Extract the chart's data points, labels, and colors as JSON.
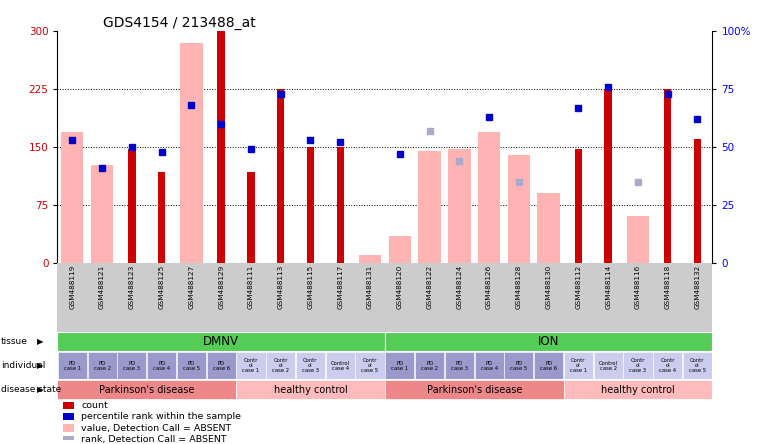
{
  "title": "GDS4154 / 213488_at",
  "samples": [
    "GSM488119",
    "GSM488121",
    "GSM488123",
    "GSM488125",
    "GSM488127",
    "GSM488129",
    "GSM488111",
    "GSM488113",
    "GSM488115",
    "GSM488117",
    "GSM488131",
    "GSM488120",
    "GSM488122",
    "GSM488124",
    "GSM488126",
    "GSM488128",
    "GSM488130",
    "GSM488112",
    "GSM488114",
    "GSM488116",
    "GSM488118",
    "GSM488132"
  ],
  "value_absent": [
    170,
    127,
    null,
    null,
    285,
    null,
    null,
    null,
    null,
    null,
    10,
    35,
    145,
    148,
    170,
    140,
    90,
    null,
    null,
    60,
    null,
    null
  ],
  "count": [
    null,
    null,
    147,
    117,
    null,
    300,
    118,
    225,
    150,
    150,
    null,
    null,
    null,
    null,
    null,
    null,
    null,
    148,
    225,
    null,
    225,
    160
  ],
  "rank_pct": [
    53,
    41,
    50,
    48,
    68,
    60,
    49,
    73,
    53,
    52,
    null,
    47,
    null,
    null,
    63,
    null,
    null,
    67,
    76,
    null,
    73,
    62
  ],
  "rank_absent": [
    null,
    null,
    null,
    null,
    null,
    null,
    null,
    null,
    null,
    null,
    null,
    null,
    57,
    44,
    null,
    35,
    null,
    null,
    null,
    35,
    null,
    null
  ],
  "ylim_left": [
    0,
    300
  ],
  "yticks_left": [
    0,
    75,
    150,
    225,
    300
  ],
  "yticks_right": [
    0,
    25,
    50,
    75,
    100
  ],
  "hlines": [
    75,
    150,
    225
  ],
  "color_value_absent": "#ffb3b3",
  "color_count": "#cc0000",
  "color_rank_pct": "#0000cc",
  "color_rank_absent": "#aaaacc",
  "color_tissue": "#55cc55",
  "color_pd": "#ee8888",
  "color_hc": "#ffbbbb",
  "color_indiv_pd": "#9999cc",
  "color_indiv_hc": "#ccccee",
  "tissue_labels": [
    "DMNV",
    "ION"
  ],
  "tissue_ranges": [
    [
      0,
      10
    ],
    [
      11,
      21
    ]
  ],
  "pd_ranges_dmnv": [
    0,
    5
  ],
  "hc_ranges_dmnv": [
    6,
    10
  ],
  "pd_ranges_ion": [
    11,
    16
  ],
  "hc_ranges_ion": [
    17,
    21
  ],
  "indiv_labels": [
    "PD\ncase 1",
    "PD\ncase 2",
    "PD\ncase 3",
    "PD\ncase 4",
    "PD\ncase 5",
    "PD\ncase 6",
    "Contr\nol\ncase 1",
    "Contr\nol\ncase 2",
    "Contr\nol\ncase 3",
    "Control\ncase 4",
    "Contr\nol\ncase 5",
    "PD\ncase 1",
    "PD\ncase 2",
    "PD\ncase 3",
    "PD\ncase 4",
    "PD\ncase 5",
    "PD\ncase 6",
    "Contr\nol\ncase 1",
    "Control\ncase 2",
    "Contr\nol\ncase 3",
    "Contr\nol\ncase 4",
    "Contr\nol\ncase 5"
  ],
  "disease_regions": [
    [
      0,
      5,
      "Parkinson's disease",
      "#ee8888"
    ],
    [
      6,
      10,
      "healthy control",
      "#ffbbbb"
    ],
    [
      11,
      16,
      "Parkinson's disease",
      "#ee8888"
    ],
    [
      17,
      21,
      "healthy control",
      "#ffbbbb"
    ]
  ],
  "legend_items": [
    [
      "#cc0000",
      "count"
    ],
    [
      "#0000cc",
      "percentile rank within the sample"
    ],
    [
      "#ffb3b3",
      "value, Detection Call = ABSENT"
    ],
    [
      "#aaaacc",
      "rank, Detection Call = ABSENT"
    ]
  ]
}
